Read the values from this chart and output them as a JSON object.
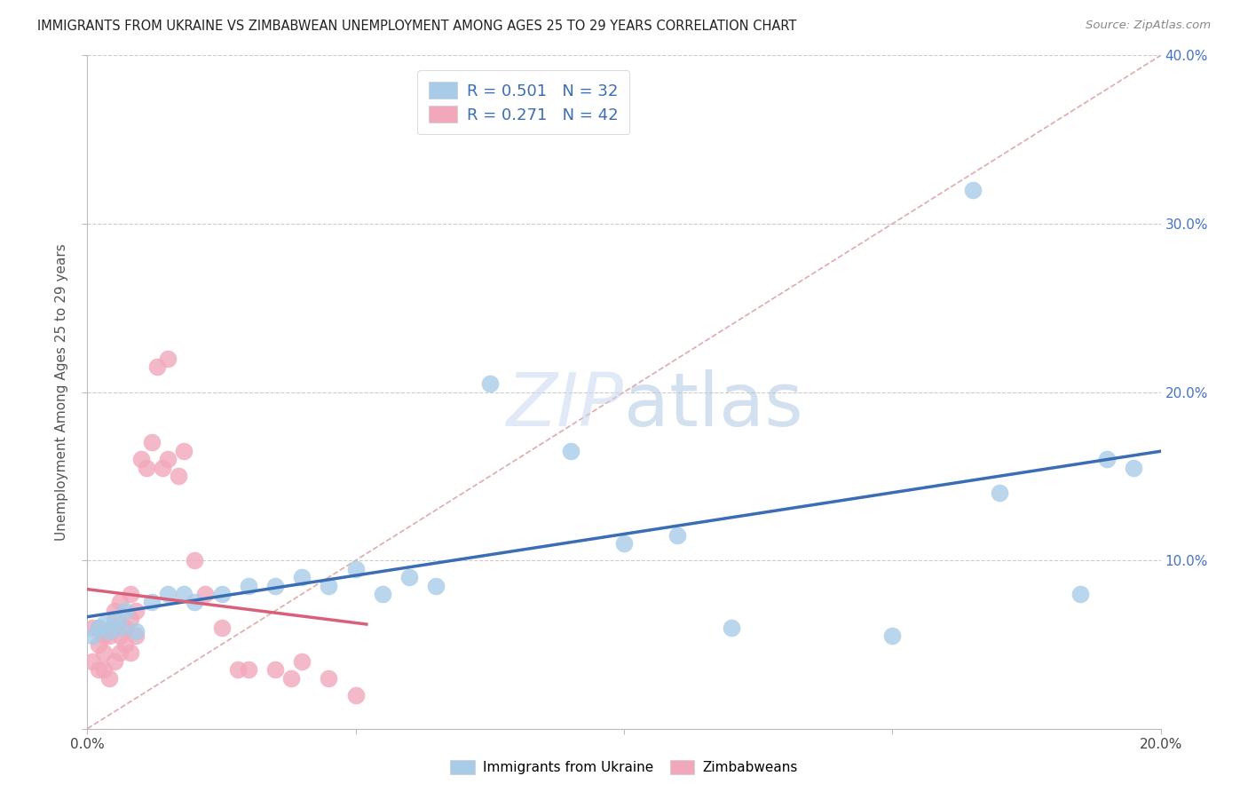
{
  "title": "IMMIGRANTS FROM UKRAINE VS ZIMBABWEAN UNEMPLOYMENT AMONG AGES 25 TO 29 YEARS CORRELATION CHART",
  "source": "Source: ZipAtlas.com",
  "ylabel": "Unemployment Among Ages 25 to 29 years",
  "legend_label_1": "Immigrants from Ukraine",
  "legend_label_2": "Zimbabweans",
  "r1": 0.501,
  "n1": 32,
  "r2": 0.271,
  "n2": 42,
  "color_ukraine": "#A8CCE8",
  "color_zimbabwe": "#F2A8BB",
  "line_color_ukraine": "#3B6DB5",
  "line_color_zimbabwe": "#D9607A",
  "diag_color": "#E0AAAA",
  "xlim": [
    0.0,
    0.2
  ],
  "ylim": [
    0.0,
    0.4
  ],
  "ukraine_x": [
    0.001,
    0.002,
    0.003,
    0.004,
    0.005,
    0.006,
    0.007,
    0.009,
    0.012,
    0.015,
    0.018,
    0.02,
    0.025,
    0.03,
    0.035,
    0.04,
    0.045,
    0.05,
    0.055,
    0.06,
    0.065,
    0.075,
    0.09,
    0.1,
    0.11,
    0.12,
    0.15,
    0.165,
    0.17,
    0.185,
    0.19,
    0.195
  ],
  "ukraine_y": [
    0.055,
    0.06,
    0.062,
    0.058,
    0.065,
    0.06,
    0.07,
    0.058,
    0.075,
    0.08,
    0.08,
    0.075,
    0.08,
    0.085,
    0.085,
    0.09,
    0.085,
    0.095,
    0.08,
    0.09,
    0.085,
    0.205,
    0.165,
    0.11,
    0.115,
    0.06,
    0.055,
    0.32,
    0.14,
    0.08,
    0.16,
    0.155
  ],
  "zimbabwe_x": [
    0.001,
    0.001,
    0.002,
    0.002,
    0.002,
    0.003,
    0.003,
    0.003,
    0.004,
    0.004,
    0.005,
    0.005,
    0.005,
    0.006,
    0.006,
    0.006,
    0.007,
    0.007,
    0.008,
    0.008,
    0.008,
    0.009,
    0.009,
    0.01,
    0.011,
    0.012,
    0.013,
    0.014,
    0.015,
    0.015,
    0.017,
    0.018,
    0.02,
    0.022,
    0.025,
    0.028,
    0.03,
    0.035,
    0.038,
    0.04,
    0.045,
    0.05
  ],
  "zimbabwe_y": [
    0.04,
    0.06,
    0.035,
    0.05,
    0.06,
    0.035,
    0.045,
    0.055,
    0.03,
    0.055,
    0.04,
    0.06,
    0.07,
    0.045,
    0.055,
    0.075,
    0.05,
    0.06,
    0.045,
    0.065,
    0.08,
    0.055,
    0.07,
    0.16,
    0.155,
    0.17,
    0.215,
    0.155,
    0.16,
    0.22,
    0.15,
    0.165,
    0.1,
    0.08,
    0.06,
    0.035,
    0.035,
    0.035,
    0.03,
    0.04,
    0.03,
    0.02
  ]
}
